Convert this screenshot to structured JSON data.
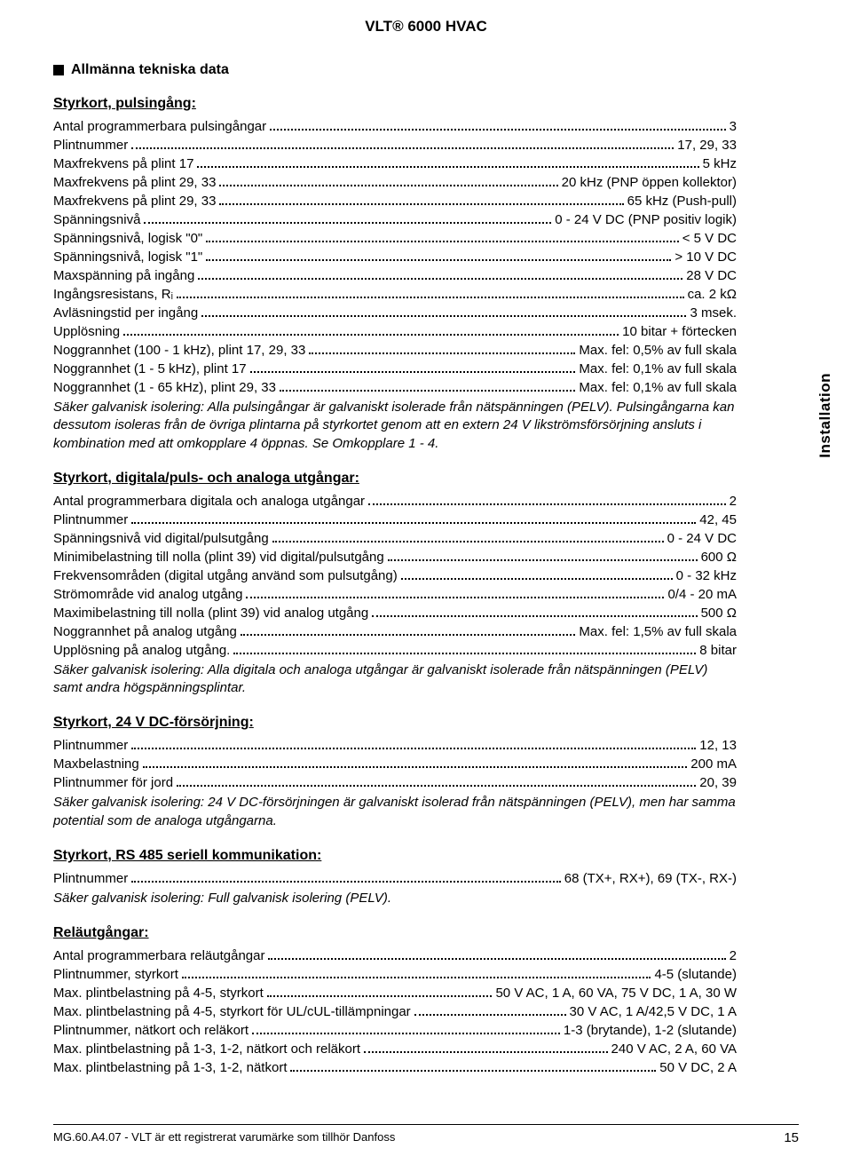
{
  "header": {
    "title": "VLT® 6000 HVAC"
  },
  "side_tab": "Installation",
  "main_heading": "Allmänna tekniska data",
  "footer": {
    "left": "MG.60.A4.07 - VLT är ett registrerat varumärke som tillhör Danfoss",
    "page": "15"
  },
  "sections": [
    {
      "title": "Styrkort, pulsingång:",
      "rows": [
        {
          "label": "Antal programmerbara pulsingångar",
          "value": "3"
        },
        {
          "label": "Plintnummer",
          "value": "17, 29, 33"
        },
        {
          "label": "Maxfrekvens på plint 17",
          "value": "5 kHz"
        },
        {
          "label": "Maxfrekvens på plint 29, 33",
          "value": "20 kHz (PNP öppen kollektor)"
        },
        {
          "label": "Maxfrekvens på plint 29, 33",
          "value": "65 kHz (Push-pull)"
        },
        {
          "label": "Spänningsnivå",
          "value": "0 - 24 V DC (PNP positiv logik)"
        },
        {
          "label": "Spänningsnivå, logisk \"0\"",
          "value": "< 5 V DC"
        },
        {
          "label": "Spänningsnivå, logisk \"1\"",
          "value": "> 10 V DC"
        },
        {
          "label": "Maxspänning på ingång",
          "value": "28 V DC"
        },
        {
          "label": "Ingångsresistans, Rᵢ",
          "value": "ca. 2 kΩ"
        },
        {
          "label": "Avläsningstid per ingång",
          "value": "3 msek."
        },
        {
          "label": "Upplösning",
          "value": "10 bitar + förtecken"
        },
        {
          "label": "Noggrannhet (100 - 1 kHz), plint 17, 29, 33",
          "value": "Max. fel: 0,5% av full skala"
        },
        {
          "label": "Noggrannhet (1 - 5 kHz), plint 17",
          "value": "Max. fel: 0,1% av full skala"
        },
        {
          "label": "Noggrannhet (1 - 65 kHz), plint 29, 33",
          "value": "Max. fel: 0,1% av full skala"
        }
      ],
      "note": "Säker galvanisk isolering: Alla pulsingångar är galvaniskt isolerade från nätspänningen (PELV). Pulsingångarna kan dessutom isoleras från de övriga plintarna på styrkortet genom att en extern 24 V likströmsförsörjning ansluts i kombination med att omkopplare 4 öppnas. Se Omkopplare 1 - 4."
    },
    {
      "title": "Styrkort, digitala/puls- och analoga utgångar:",
      "rows": [
        {
          "label": "Antal programmerbara digitala och analoga utgångar",
          "value": "2"
        },
        {
          "label": "Plintnummer",
          "value": "42, 45"
        },
        {
          "label": "Spänningsnivå vid digital/pulsutgång",
          "value": "0 - 24 V DC"
        },
        {
          "label": "Minimibelastning till nolla (plint 39) vid digital/pulsutgång",
          "value": "600 Ω"
        },
        {
          "label": "Frekvensområden (digital utgång använd som pulsutgång)",
          "value": "0 - 32 kHz"
        },
        {
          "label": "Strömområde vid analog utgång",
          "value": "0/4 - 20 mA"
        },
        {
          "label": "Maximibelastning till nolla (plint 39) vid analog utgång",
          "value": "500 Ω"
        },
        {
          "label": "Noggrannhet på analog utgång",
          "value": "Max. fel: 1,5% av full skala"
        },
        {
          "label": "Upplösning på analog utgång.",
          "value": "8 bitar"
        }
      ],
      "note": "Säker galvanisk isolering: Alla digitala och analoga utgångar är galvaniskt isolerade från nätspänningen (PELV) samt andra högspänningsplintar."
    },
    {
      "title": "Styrkort, 24 V DC-försörjning:",
      "rows": [
        {
          "label": "Plintnummer",
          "value": "12, 13"
        },
        {
          "label": "Maxbelastning",
          "value": "200 mA"
        },
        {
          "label": "Plintnummer för jord",
          "value": "20, 39"
        }
      ],
      "note": "Säker galvanisk isolering: 24 V DC-försörjningen är galvaniskt isolerad från nätspänningen (PELV), men har samma potential som de analoga utgångarna."
    },
    {
      "title": "Styrkort, RS 485 seriell kommunikation:",
      "rows": [
        {
          "label": "Plintnummer",
          "value": "68 (TX+, RX+), 69 (TX-, RX-)"
        }
      ],
      "note": "Säker galvanisk isolering: Full galvanisk isolering (PELV)."
    },
    {
      "title": "Reläutgångar:",
      "rows": [
        {
          "label": "Antal programmerbara reläutgångar",
          "value": "2"
        },
        {
          "label": "Plintnummer, styrkort",
          "value": "4-5 (slutande)"
        },
        {
          "label": "Max. plintbelastning på 4-5, styrkort",
          "value": "50 V AC, 1 A, 60 VA, 75 V DC, 1 A, 30 W"
        },
        {
          "label": "Max. plintbelastning på 4-5, styrkort för UL/cUL-tillämpningar",
          "value": "30 V AC, 1 A/42,5 V DC, 1 A"
        },
        {
          "label": "Plintnummer, nätkort och reläkort",
          "value": "1-3 (brytande), 1-2 (slutande)"
        },
        {
          "label": "Max. plintbelastning på 1-3, 1-2, nätkort och reläkort",
          "value": "240 V AC, 2 A, 60 VA"
        },
        {
          "label": "Max. plintbelastning på 1-3, 1-2, nätkort",
          "value": "50 V DC, 2 A"
        }
      ]
    }
  ]
}
